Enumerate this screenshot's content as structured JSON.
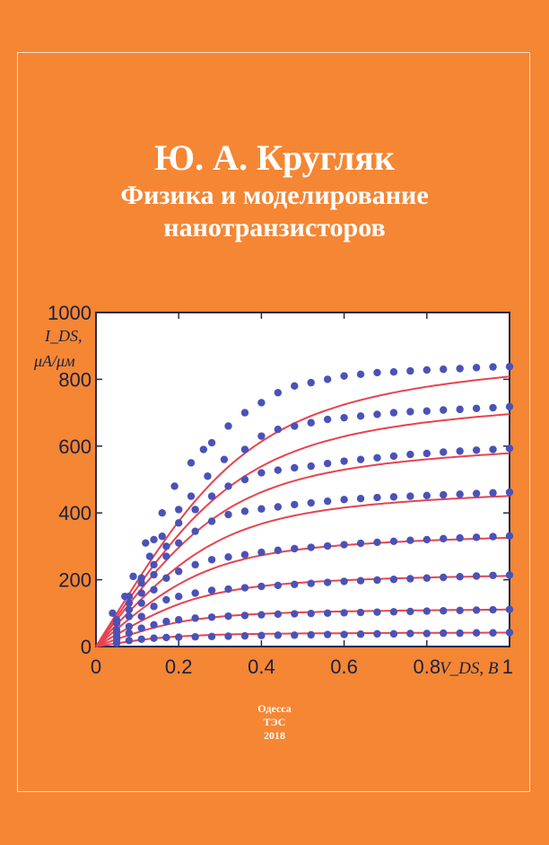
{
  "cover": {
    "author": "Ю. А. Кругляк",
    "title_line1": "Физика и моделирование",
    "title_line2": "нанотранзисторов",
    "city": "Одесса",
    "publisher": "ТЭС",
    "year": "2018"
  },
  "colors": {
    "background": "#f58634",
    "plot_background": "#ffffff",
    "curve": "#e8434f",
    "marker": "#4a52b8",
    "axis": "#252a4a"
  },
  "chart_data": {
    "type": "scatter",
    "xlabel": "V_DS, В",
    "ylabel_line1": "I_DS,",
    "ylabel_line2": "μA/μм",
    "xlim": [
      0,
      1
    ],
    "ylim": [
      0,
      1000
    ],
    "x_ticks": [
      0,
      0.2,
      0.4,
      0.6,
      0.8,
      1
    ],
    "x_tick_labels": [
      "0",
      "0.2",
      "0.4",
      "0.6",
      "0.8",
      "1"
    ],
    "y_ticks": [
      0,
      200,
      400,
      600,
      800,
      1000
    ],
    "y_tick_labels": [
      "0",
      "200",
      "400",
      "600",
      "800",
      "1000"
    ],
    "grid": false,
    "legend": "none",
    "series": [
      {
        "sat": 840,
        "vsat": 0.4,
        "x": [
          0.04,
          0.07,
          0.09,
          0.12,
          0.14,
          0.16,
          0.19,
          0.23,
          0.26,
          0.28,
          0.32,
          0.36,
          0.4,
          0.44,
          0.48,
          0.52,
          0.56,
          0.6,
          0.64,
          0.68,
          0.72,
          0.76,
          0.8,
          0.84,
          0.88,
          0.92,
          0.96,
          1.0
        ],
        "y": [
          100,
          150,
          210,
          310,
          320,
          400,
          480,
          550,
          590,
          610,
          660,
          700,
          730,
          760,
          780,
          790,
          800,
          810,
          815,
          820,
          822,
          825,
          828,
          830,
          832,
          835,
          837,
          838
        ]
      },
      {
        "sat": 720,
        "vsat": 0.38,
        "x": [
          0.05,
          0.08,
          0.11,
          0.13,
          0.16,
          0.2,
          0.23,
          0.27,
          0.31,
          0.36,
          0.4,
          0.44,
          0.48,
          0.52,
          0.56,
          0.6,
          0.64,
          0.68,
          0.72,
          0.76,
          0.8,
          0.84,
          0.88,
          0.92,
          0.96,
          1.0
        ],
        "y": [
          80,
          150,
          205,
          270,
          330,
          410,
          450,
          510,
          560,
          590,
          630,
          650,
          660,
          670,
          680,
          685,
          690,
          695,
          700,
          703,
          705,
          708,
          710,
          713,
          715,
          718
        ]
      },
      {
        "sat": 595,
        "vsat": 0.35,
        "x": [
          0.05,
          0.08,
          0.11,
          0.14,
          0.17,
          0.2,
          0.24,
          0.28,
          0.32,
          0.36,
          0.4,
          0.44,
          0.48,
          0.52,
          0.56,
          0.6,
          0.64,
          0.68,
          0.72,
          0.76,
          0.8,
          0.84,
          0.88,
          0.92,
          0.96,
          1.0
        ],
        "y": [
          70,
          130,
          190,
          245,
          300,
          370,
          410,
          450,
          480,
          500,
          520,
          528,
          535,
          540,
          548,
          555,
          560,
          565,
          570,
          575,
          578,
          582,
          585,
          588,
          590,
          593
        ]
      },
      {
        "sat": 462,
        "vsat": 0.33,
        "x": [
          0.05,
          0.08,
          0.11,
          0.14,
          0.17,
          0.2,
          0.24,
          0.28,
          0.32,
          0.36,
          0.4,
          0.44,
          0.48,
          0.52,
          0.56,
          0.6,
          0.64,
          0.68,
          0.72,
          0.76,
          0.8,
          0.84,
          0.88,
          0.92,
          0.96,
          1.0
        ],
        "y": [
          50,
          110,
          160,
          215,
          270,
          310,
          345,
          375,
          395,
          405,
          412,
          418,
          425,
          430,
          435,
          440,
          443,
          446,
          448,
          450,
          452,
          454,
          456,
          458,
          460,
          462
        ]
      },
      {
        "sat": 332,
        "vsat": 0.3,
        "x": [
          0.05,
          0.08,
          0.11,
          0.14,
          0.17,
          0.2,
          0.24,
          0.28,
          0.32,
          0.36,
          0.4,
          0.44,
          0.48,
          0.52,
          0.56,
          0.6,
          0.64,
          0.68,
          0.72,
          0.76,
          0.8,
          0.84,
          0.88,
          0.92,
          0.96,
          1.0
        ],
        "y": [
          40,
          90,
          130,
          170,
          205,
          225,
          245,
          260,
          268,
          275,
          282,
          288,
          293,
          297,
          301,
          305,
          309,
          312,
          315,
          318,
          320,
          323,
          325,
          327,
          329,
          331
        ]
      },
      {
        "sat": 215,
        "vsat": 0.28,
        "x": [
          0.05,
          0.08,
          0.11,
          0.14,
          0.17,
          0.2,
          0.24,
          0.28,
          0.32,
          0.36,
          0.4,
          0.44,
          0.48,
          0.52,
          0.56,
          0.6,
          0.64,
          0.68,
          0.72,
          0.76,
          0.8,
          0.84,
          0.88,
          0.92,
          0.96,
          1.0
        ],
        "y": [
          30,
          60,
          90,
          120,
          140,
          150,
          160,
          168,
          172,
          176,
          180,
          183,
          186,
          189,
          192,
          195,
          197,
          199,
          201,
          203,
          205,
          207,
          209,
          211,
          213,
          214
        ]
      },
      {
        "sat": 112,
        "vsat": 0.24,
        "x": [
          0.05,
          0.08,
          0.11,
          0.14,
          0.17,
          0.2,
          0.24,
          0.28,
          0.32,
          0.36,
          0.4,
          0.44,
          0.48,
          0.52,
          0.56,
          0.6,
          0.64,
          0.68,
          0.72,
          0.76,
          0.8,
          0.84,
          0.88,
          0.92,
          0.96,
          1.0
        ],
        "y": [
          20,
          40,
          55,
          65,
          75,
          80,
          85,
          88,
          91,
          93,
          95,
          97,
          98,
          99,
          100,
          101,
          102,
          103,
          104,
          105,
          106,
          107,
          108,
          109,
          110,
          111
        ]
      },
      {
        "sat": 42,
        "vsat": 0.2,
        "x": [
          0.05,
          0.08,
          0.11,
          0.14,
          0.17,
          0.2,
          0.24,
          0.28,
          0.32,
          0.36,
          0.4,
          0.44,
          0.48,
          0.52,
          0.56,
          0.6,
          0.64,
          0.68,
          0.72,
          0.76,
          0.8,
          0.84,
          0.88,
          0.92,
          0.96,
          1.0
        ],
        "y": [
          10,
          18,
          22,
          25,
          27,
          28,
          29,
          30,
          31,
          32,
          33,
          34,
          34,
          35,
          36,
          36,
          37,
          38,
          38,
          39,
          39,
          40,
          40,
          41,
          41,
          42
        ]
      }
    ]
  }
}
